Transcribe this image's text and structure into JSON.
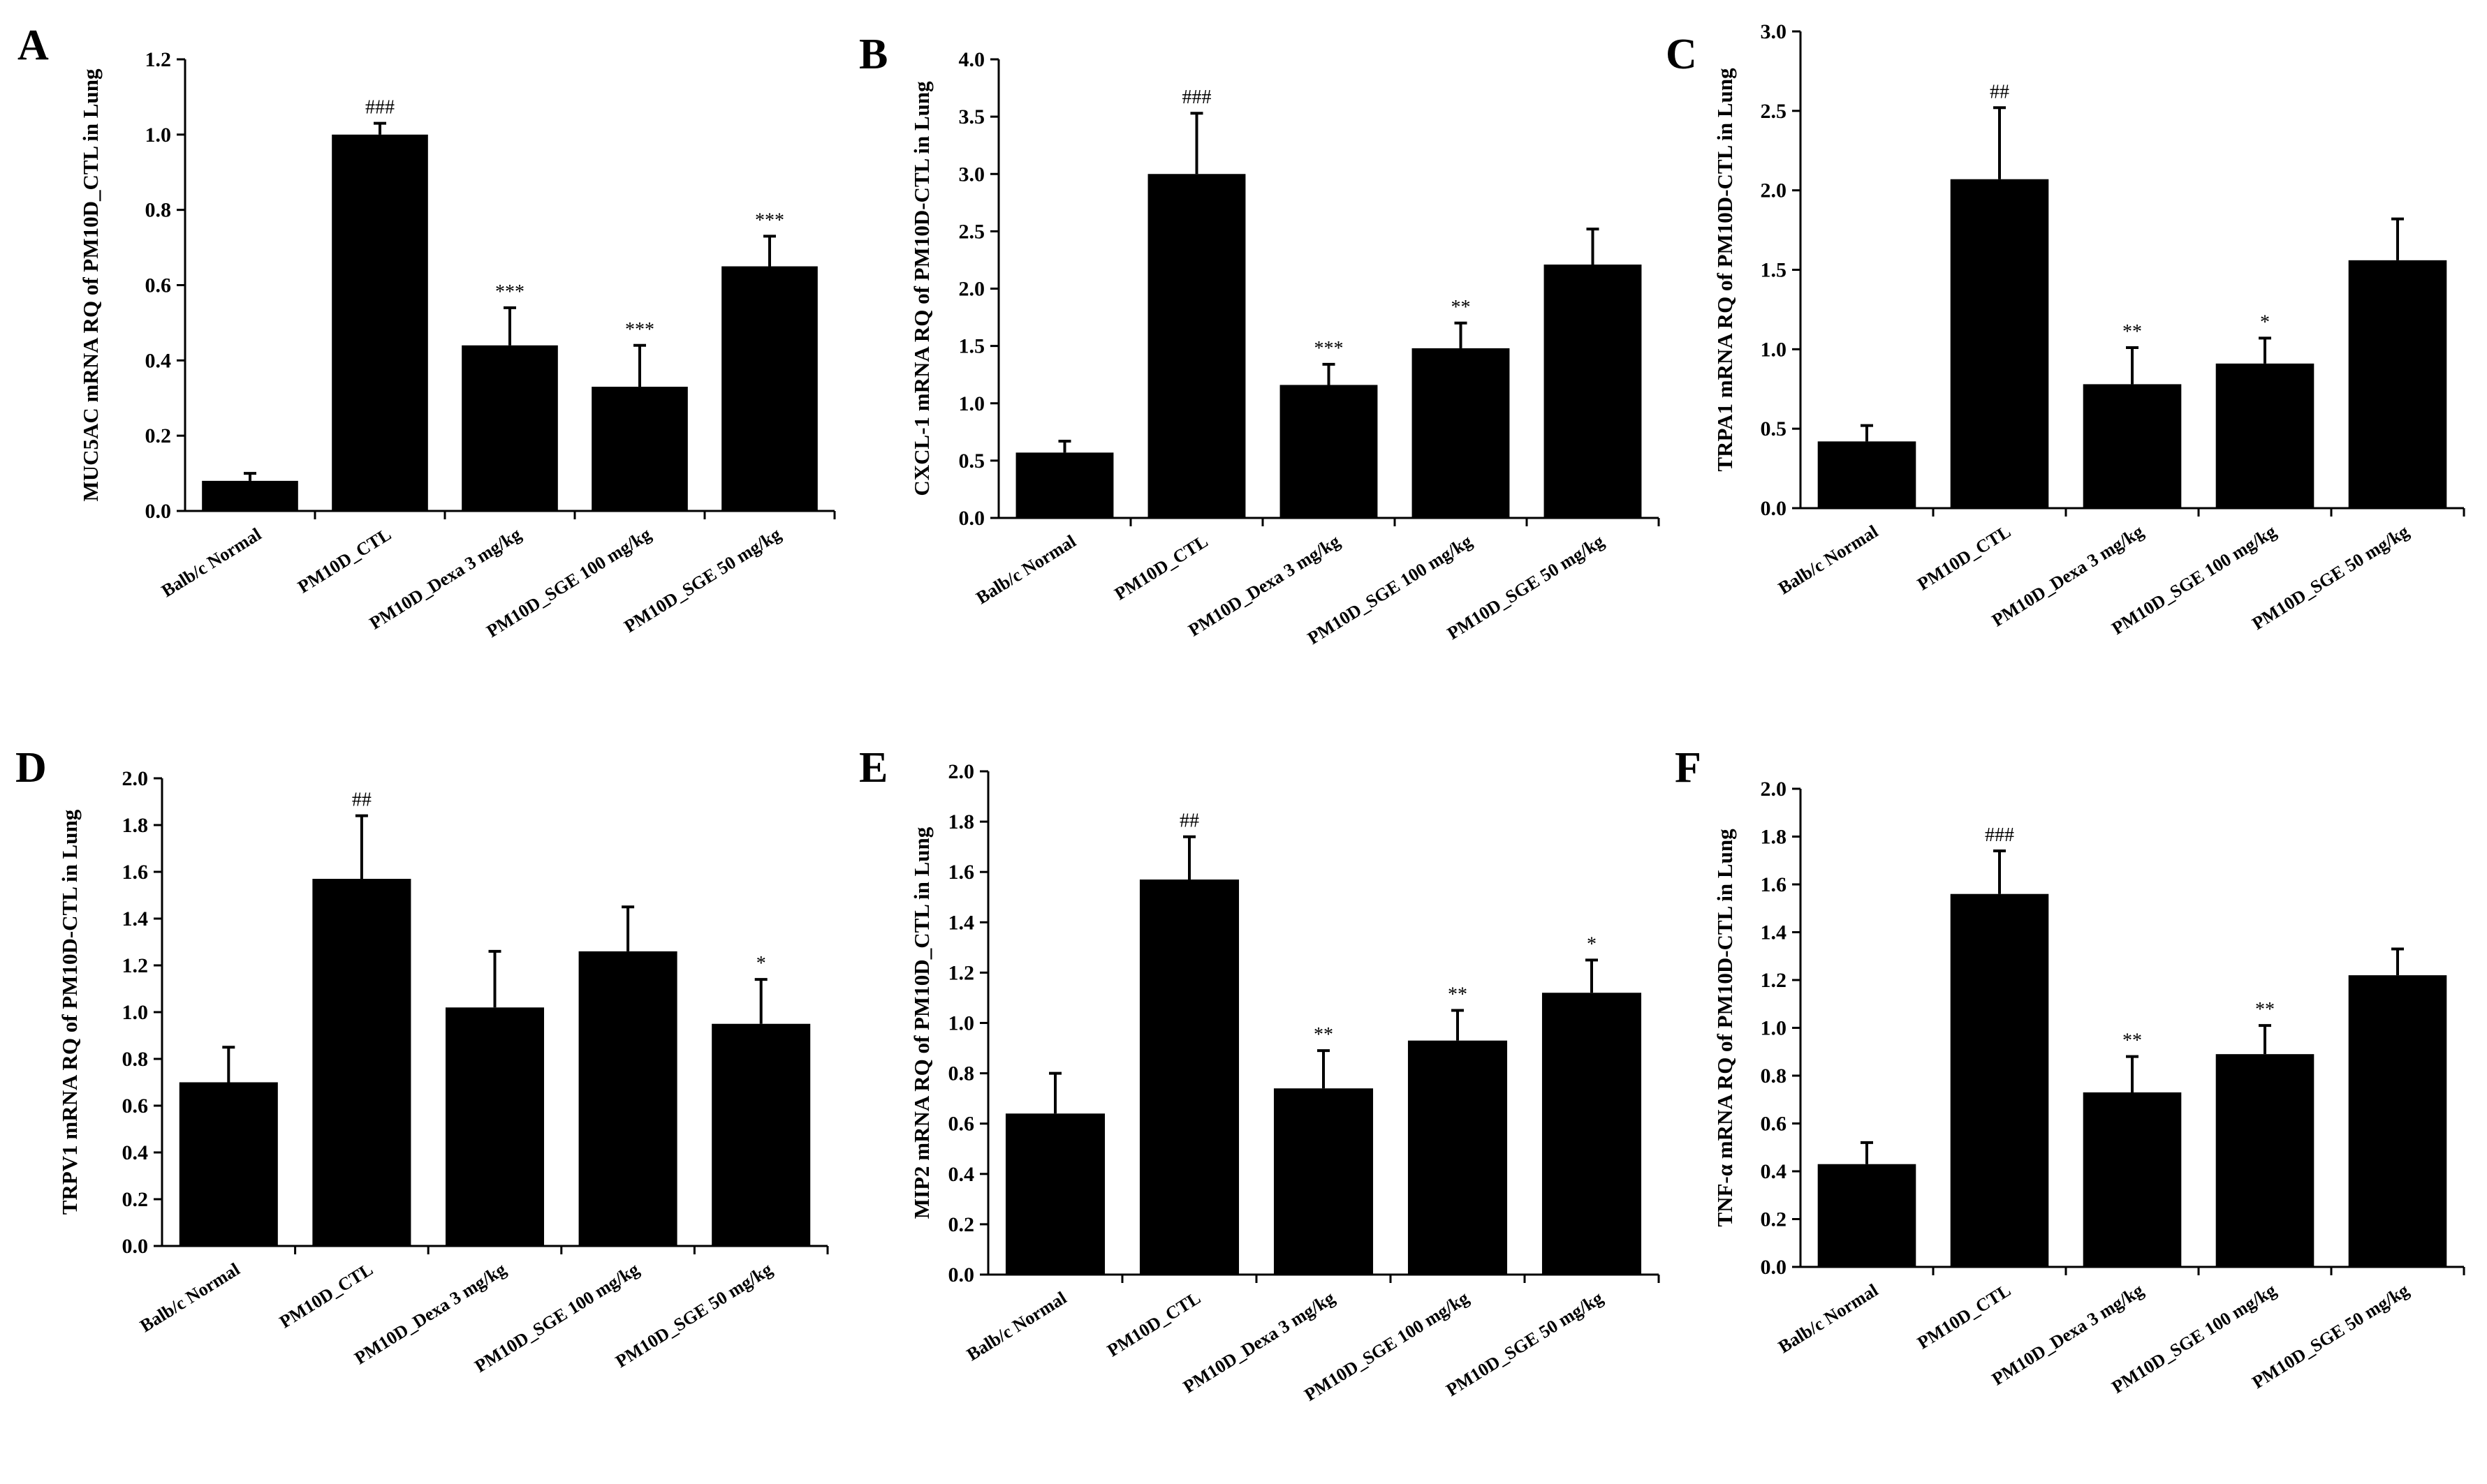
{
  "chart_data": [
    {
      "panel": "A",
      "type": "bar",
      "ylabel": "MUC5AC mRNA RQ of PM10D_CTL in Lung",
      "ylim": [
        0,
        1.2
      ],
      "yticks": [
        "0.0",
        "0.2",
        "0.4",
        "0.6",
        "0.8",
        "1.0",
        "1.2"
      ],
      "categories": [
        "Balb/c Normal",
        "PM10D_CTL",
        "PM10D_Dexa 3 mg/kg",
        "PM10D_SGE 100 mg/kg",
        "PM10D_SGE 50 mg/kg"
      ],
      "values": [
        0.08,
        1.0,
        0.44,
        0.33,
        0.65
      ],
      "errors": [
        0.02,
        0.03,
        0.1,
        0.11,
        0.08
      ],
      "annotations": [
        "",
        "###",
        "***",
        "***",
        "***"
      ],
      "grid": false,
      "bar_color": "#000000"
    },
    {
      "panel": "B",
      "type": "bar",
      "ylabel": "CXCL-1 mRNA RQ of PM10D-CTL in Lung",
      "ylim": [
        0,
        4.0
      ],
      "yticks": [
        "0.0",
        "0.5",
        "1.0",
        "1.5",
        "2.0",
        "2.5",
        "3.0",
        "3.5",
        "4.0"
      ],
      "categories": [
        "Balb/c Normal",
        "PM10D_CTL",
        "PM10D_Dexa 3 mg/kg",
        "PM10D_SGE 100 mg/kg",
        "PM10D_SGE 50 mg/kg"
      ],
      "values": [
        0.57,
        3.0,
        1.16,
        1.48,
        2.21
      ],
      "errors": [
        0.1,
        0.53,
        0.18,
        0.22,
        0.31
      ],
      "annotations": [
        "",
        "###",
        "***",
        "**",
        ""
      ],
      "grid": false,
      "bar_color": "#000000"
    },
    {
      "panel": "C",
      "type": "bar",
      "ylabel": "TRPA1 mRNA RQ of PM10D-CTL in Lung",
      "ylim": [
        0,
        3.0
      ],
      "yticks": [
        "0.0",
        "0.5",
        "1.0",
        "1.5",
        "2.0",
        "2.5",
        "3.0"
      ],
      "categories": [
        "Balb/c Normal",
        "PM10D_CTL",
        "PM10D_Dexa 3 mg/kg",
        "PM10D_SGE 100 mg/kg",
        "PM10D_SGE 50 mg/kg"
      ],
      "values": [
        0.42,
        2.07,
        0.78,
        0.91,
        1.56
      ],
      "errors": [
        0.1,
        0.45,
        0.23,
        0.16,
        0.26
      ],
      "annotations": [
        "",
        "##",
        "**",
        "*",
        ""
      ],
      "grid": false,
      "bar_color": "#000000"
    },
    {
      "panel": "D",
      "type": "bar",
      "ylabel": "TRPV1 mRNA RQ of PM10D-CTL in Lung",
      "ylim": [
        0,
        2.0
      ],
      "yticks": [
        "0.0",
        "0.2",
        "0.4",
        "0.6",
        "0.8",
        "1.0",
        "1.2",
        "1.4",
        "1.6",
        "1.8",
        "2.0"
      ],
      "categories": [
        "Balb/c Normal",
        "PM10D_CTL",
        "PM10D_Dexa 3 mg/kg",
        "PM10D_SGE 100 mg/kg",
        "PM10D_SGE 50 mg/kg"
      ],
      "values": [
        0.7,
        1.57,
        1.02,
        1.26,
        0.95
      ],
      "errors": [
        0.15,
        0.27,
        0.24,
        0.19,
        0.19
      ],
      "annotations": [
        "",
        "##",
        "",
        "",
        "*"
      ],
      "grid": false,
      "bar_color": "#000000"
    },
    {
      "panel": "E",
      "type": "bar",
      "ylabel": "MIP2 mRNA RQ of PM10D_CTL in Lung",
      "ylim": [
        0,
        2.0
      ],
      "yticks": [
        "0.0",
        "0.2",
        "0.4",
        "0.6",
        "0.8",
        "1.0",
        "1.2",
        "1.4",
        "1.6",
        "1.8",
        "2.0"
      ],
      "categories": [
        "Balb/c Normal",
        "PM10D_CTL",
        "PM10D_Dexa 3 mg/kg",
        "PM10D_SGE 100 mg/kg",
        "PM10D_SGE 50 mg/kg"
      ],
      "values": [
        0.64,
        1.57,
        0.74,
        0.93,
        1.12
      ],
      "errors": [
        0.16,
        0.17,
        0.15,
        0.12,
        0.13
      ],
      "annotations": [
        "",
        "##",
        "**",
        "**",
        "*"
      ],
      "grid": false,
      "bar_color": "#000000"
    },
    {
      "panel": "F",
      "type": "bar",
      "ylabel": "TNF-α mRNA RQ of PM10D-CTL in Lung",
      "ylim": [
        0,
        2.0
      ],
      "yticks": [
        "0.0",
        "0.2",
        "0.4",
        "0.6",
        "0.8",
        "1.0",
        "1.2",
        "1.4",
        "1.6",
        "1.8",
        "2.0"
      ],
      "categories": [
        "Balb/c Normal",
        "PM10D_CTL",
        "PM10D_Dexa 3 mg/kg",
        "PM10D_SGE 100 mg/kg",
        "PM10D_SGE 50 mg/kg"
      ],
      "values": [
        0.43,
        1.56,
        0.73,
        0.89,
        1.22
      ],
      "errors": [
        0.09,
        0.18,
        0.15,
        0.12,
        0.11
      ],
      "annotations": [
        "",
        "###",
        "**",
        "**",
        ""
      ],
      "grid": false,
      "bar_color": "#000000"
    }
  ]
}
